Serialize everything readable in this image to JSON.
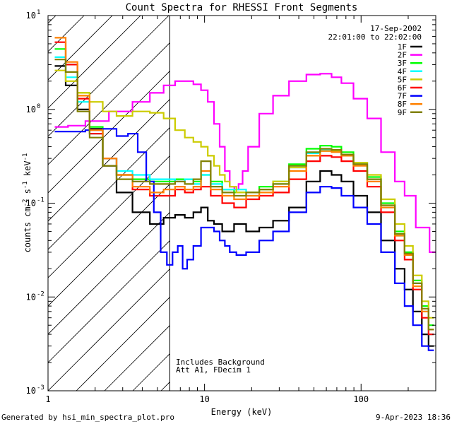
{
  "chart_data": {
    "type": "line",
    "title": "Count Spectra for RHESSI Front Segments",
    "xlabel": "Energy (keV)",
    "ylabel_parts": [
      "counts cm",
      "-2",
      " s",
      "-1",
      " keV",
      "-1"
    ],
    "x_scale": "log",
    "y_scale": "log",
    "xlim": [
      1.0,
      300.0
    ],
    "ylim": [
      0.001,
      10.0
    ],
    "x_ticks": [
      {
        "value": 1,
        "label": "1"
      },
      {
        "value": 10,
        "label": "10"
      },
      {
        "value": 100,
        "label": "100"
      }
    ],
    "y_ticks": [
      {
        "value": 10,
        "base": "10",
        "exp": "1"
      },
      {
        "value": 1,
        "base": "10",
        "exp": "0"
      },
      {
        "value": 0.1,
        "base": "10",
        "exp": "-1"
      },
      {
        "value": 0.01,
        "base": "10",
        "exp": "-2"
      },
      {
        "value": 0.001,
        "base": "10",
        "exp": "-3"
      }
    ],
    "date": "17-Sep-2002",
    "time_range": "22:01:00 to 22:02:00",
    "attenuator_note": [
      "Includes Background",
      "Att A1, FDecim 1"
    ],
    "shaded_region_max_kev": 6.0,
    "footer_left": "Generated by hsi_min_spectra_plot.pro",
    "footer_right": "9-Apr-2023 18:36",
    "series": [
      {
        "name": "1F",
        "color": "#000000",
        "x": [
          1.2,
          1.4,
          1.7,
          2.0,
          2.5,
          3.0,
          4.0,
          5.0,
          6.0,
          7.0,
          8.0,
          9.0,
          10.0,
          11.0,
          12.0,
          14.0,
          17.0,
          20.0,
          25.0,
          30.0,
          40.0,
          50.0,
          60.0,
          70.0,
          80.0,
          100.0,
          120.0,
          150.0,
          180.0,
          200.0,
          230.0,
          260.0,
          280.0
        ],
        "y": [
          2.9,
          1.8,
          1.0,
          0.62,
          0.25,
          0.13,
          0.08,
          0.06,
          0.07,
          0.075,
          0.07,
          0.08,
          0.09,
          0.065,
          0.06,
          0.05,
          0.06,
          0.05,
          0.055,
          0.065,
          0.09,
          0.17,
          0.22,
          0.2,
          0.17,
          0.12,
          0.08,
          0.04,
          0.02,
          0.012,
          0.007,
          0.004,
          0.003
        ]
      },
      {
        "name": "2F",
        "color": "#ff00ff",
        "x": [
          1.2,
          1.5,
          2.0,
          3.0,
          4.0,
          5.0,
          6.0,
          7.0,
          8.0,
          9.0,
          10.0,
          11.0,
          12.0,
          13.0,
          14.0,
          15.0,
          16.0,
          17.0,
          18.0,
          20.0,
          25.0,
          30.0,
          40.0,
          50.0,
          60.0,
          70.0,
          80.0,
          100.0,
          120.0,
          150.0,
          180.0,
          200.0,
          250.0,
          300.0
        ],
        "y": [
          0.65,
          0.67,
          0.75,
          0.95,
          1.2,
          1.5,
          1.8,
          2.0,
          2.0,
          1.85,
          1.6,
          1.2,
          0.7,
          0.4,
          0.22,
          0.15,
          0.14,
          0.16,
          0.22,
          0.4,
          0.9,
          1.4,
          2.0,
          2.35,
          2.4,
          2.2,
          1.9,
          1.3,
          0.8,
          0.35,
          0.17,
          0.12,
          0.055,
          0.03
        ]
      },
      {
        "name": "3F",
        "color": "#00ff00",
        "x": [
          1.2,
          1.4,
          1.7,
          2.0,
          2.5,
          3.0,
          4.0,
          5.0,
          6.0,
          7.0,
          8.0,
          9.0,
          10.0,
          12.0,
          14.0,
          17.0,
          20.0,
          25.0,
          30.0,
          40.0,
          50.0,
          60.0,
          70.0,
          80.0,
          100.0,
          120.0,
          150.0,
          180.0,
          200.0,
          230.0,
          260.0,
          280.0
        ],
        "y": [
          4.4,
          3.0,
          1.5,
          0.65,
          0.3,
          0.2,
          0.18,
          0.17,
          0.17,
          0.18,
          0.18,
          0.17,
          0.2,
          0.17,
          0.14,
          0.13,
          0.13,
          0.15,
          0.17,
          0.26,
          0.38,
          0.41,
          0.4,
          0.35,
          0.27,
          0.19,
          0.1,
          0.05,
          0.03,
          0.015,
          0.008,
          0.005
        ]
      },
      {
        "name": "4F",
        "color": "#00ffff",
        "x": [
          1.2,
          1.4,
          1.7,
          2.0,
          2.5,
          3.0,
          4.0,
          5.0,
          6.0,
          7.0,
          8.0,
          9.0,
          10.0,
          12.0,
          14.0,
          17.0,
          20.0,
          25.0,
          30.0,
          40.0,
          50.0,
          60.0,
          70.0,
          80.0,
          100.0,
          120.0,
          150.0,
          180.0,
          200.0,
          230.0,
          260.0,
          280.0
        ],
        "y": [
          3.6,
          2.2,
          1.2,
          0.55,
          0.3,
          0.22,
          0.2,
          0.18,
          0.18,
          0.17,
          0.18,
          0.16,
          0.2,
          0.16,
          0.14,
          0.14,
          0.12,
          0.14,
          0.16,
          0.24,
          0.34,
          0.37,
          0.36,
          0.33,
          0.26,
          0.18,
          0.09,
          0.045,
          0.028,
          0.014,
          0.007,
          0.004
        ]
      },
      {
        "name": "5F",
        "color": "#cccc00",
        "x": [
          1.2,
          1.4,
          1.7,
          2.0,
          2.5,
          3.0,
          4.0,
          5.0,
          6.0,
          7.0,
          8.0,
          9.0,
          10.0,
          11.0,
          12.0,
          13.0,
          14.0,
          15.0,
          17.0,
          20.0,
          25.0,
          30.0,
          40.0,
          50.0,
          60.0,
          70.0,
          80.0,
          100.0,
          120.0,
          150.0,
          180.0,
          200.0,
          230.0,
          260.0,
          280.0
        ],
        "y": [
          2.6,
          2.0,
          1.5,
          1.2,
          0.95,
          0.85,
          0.95,
          0.92,
          0.8,
          0.6,
          0.5,
          0.45,
          0.4,
          0.32,
          0.25,
          0.2,
          0.17,
          0.15,
          0.13,
          0.13,
          0.14,
          0.17,
          0.24,
          0.32,
          0.36,
          0.36,
          0.33,
          0.27,
          0.2,
          0.11,
          0.06,
          0.035,
          0.017,
          0.009,
          0.006
        ]
      },
      {
        "name": "6F",
        "color": "#ff0000",
        "x": [
          1.2,
          1.4,
          1.7,
          2.0,
          2.5,
          3.0,
          4.0,
          5.0,
          6.0,
          7.0,
          8.0,
          9.0,
          10.0,
          12.0,
          14.0,
          17.0,
          20.0,
          25.0,
          30.0,
          40.0,
          50.0,
          60.0,
          70.0,
          80.0,
          100.0,
          120.0,
          150.0,
          180.0,
          200.0,
          230.0,
          260.0,
          280.0
        ],
        "y": [
          5.2,
          3.0,
          1.3,
          0.55,
          0.3,
          0.2,
          0.14,
          0.12,
          0.12,
          0.14,
          0.13,
          0.14,
          0.15,
          0.12,
          0.1,
          0.09,
          0.11,
          0.12,
          0.13,
          0.18,
          0.28,
          0.32,
          0.31,
          0.28,
          0.22,
          0.15,
          0.08,
          0.04,
          0.025,
          0.012,
          0.006,
          0.004
        ]
      },
      {
        "name": "7F",
        "color": "#0000ff",
        "x": [
          1.2,
          1.5,
          2.0,
          2.5,
          3.0,
          3.5,
          4.0,
          4.5,
          5.0,
          5.5,
          6.0,
          6.5,
          7.0,
          7.5,
          8.0,
          9.0,
          10.0,
          11.0,
          12.0,
          13.0,
          14.0,
          15.0,
          17.0,
          20.0,
          25.0,
          30.0,
          40.0,
          50.0,
          60.0,
          70.0,
          80.0,
          100.0,
          120.0,
          150.0,
          180.0,
          200.0,
          230.0,
          260.0,
          280.0
        ],
        "y": [
          0.58,
          0.58,
          0.6,
          0.62,
          0.52,
          0.55,
          0.35,
          0.17,
          0.08,
          0.03,
          0.022,
          0.03,
          0.035,
          0.02,
          0.025,
          0.035,
          0.055,
          0.055,
          0.05,
          0.04,
          0.035,
          0.03,
          0.028,
          0.03,
          0.04,
          0.05,
          0.08,
          0.13,
          0.15,
          0.145,
          0.12,
          0.09,
          0.06,
          0.03,
          0.014,
          0.008,
          0.005,
          0.003,
          0.0027
        ]
      },
      {
        "name": "8F",
        "color": "#ff8000",
        "x": [
          1.2,
          1.4,
          1.7,
          2.0,
          2.5,
          3.0,
          4.0,
          5.0,
          6.0,
          7.0,
          8.0,
          9.0,
          10.0,
          12.0,
          14.0,
          17.0,
          20.0,
          25.0,
          30.0,
          40.0,
          50.0,
          60.0,
          70.0,
          80.0,
          100.0,
          120.0,
          150.0,
          180.0,
          200.0,
          230.0,
          260.0,
          280.0
        ],
        "y": [
          5.8,
          3.2,
          1.4,
          0.6,
          0.3,
          0.2,
          0.15,
          0.13,
          0.14,
          0.15,
          0.14,
          0.15,
          0.22,
          0.14,
          0.12,
          0.11,
          0.12,
          0.13,
          0.15,
          0.22,
          0.32,
          0.36,
          0.35,
          0.32,
          0.25,
          0.17,
          0.09,
          0.045,
          0.028,
          0.013,
          0.007,
          0.0045
        ]
      },
      {
        "name": "9F",
        "color": "#808000",
        "x": [
          1.2,
          1.4,
          1.7,
          2.0,
          2.5,
          3.0,
          4.0,
          5.0,
          6.0,
          7.0,
          8.0,
          9.0,
          10.0,
          12.0,
          14.0,
          17.0,
          20.0,
          25.0,
          30.0,
          40.0,
          50.0,
          60.0,
          70.0,
          80.0,
          100.0,
          120.0,
          150.0,
          180.0,
          200.0,
          230.0,
          260.0,
          280.0
        ],
        "y": [
          3.4,
          2.5,
          0.95,
          0.5,
          0.25,
          0.18,
          0.17,
          0.16,
          0.16,
          0.17,
          0.16,
          0.18,
          0.28,
          0.15,
          0.13,
          0.12,
          0.13,
          0.14,
          0.16,
          0.25,
          0.35,
          0.38,
          0.37,
          0.33,
          0.26,
          0.18,
          0.095,
          0.047,
          0.029,
          0.014,
          0.0075,
          0.0045
        ]
      }
    ]
  }
}
